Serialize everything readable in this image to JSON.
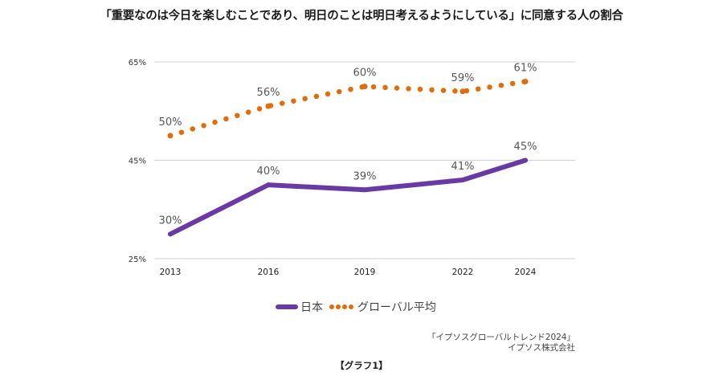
{
  "title": "「重要なのは今日を楽しむことであり、明日のことは明日考えるようにしている」に同意する人の割合",
  "chart_data": {
    "type": "line",
    "x": [
      "2013",
      "2016",
      "2019",
      "2022",
      "2024"
    ],
    "series": [
      {
        "name": "日本",
        "values": [
          30,
          40,
          39,
          41,
          45
        ],
        "labels": [
          "30%",
          "40%",
          "39%",
          "41%",
          "45%"
        ],
        "color": "#6a3aa4",
        "style": "solid"
      },
      {
        "name": "グローバル平均",
        "values": [
          50,
          56,
          60,
          59,
          61
        ],
        "labels": [
          "50%",
          "56%",
          "60%",
          "59%",
          "61%"
        ],
        "color": "#e36c0a",
        "style": "dotted"
      }
    ],
    "ylim": [
      25,
      65
    ],
    "yticks": [
      25,
      45,
      65
    ],
    "ytick_labels": [
      "25%",
      "45%",
      "65%"
    ],
    "grid": true,
    "legend": "bottom"
  },
  "source": {
    "line1": "「イプソスグローバルトレンド2024」",
    "line2": "イプソス株式会社"
  },
  "caption": "【グラフ1】"
}
